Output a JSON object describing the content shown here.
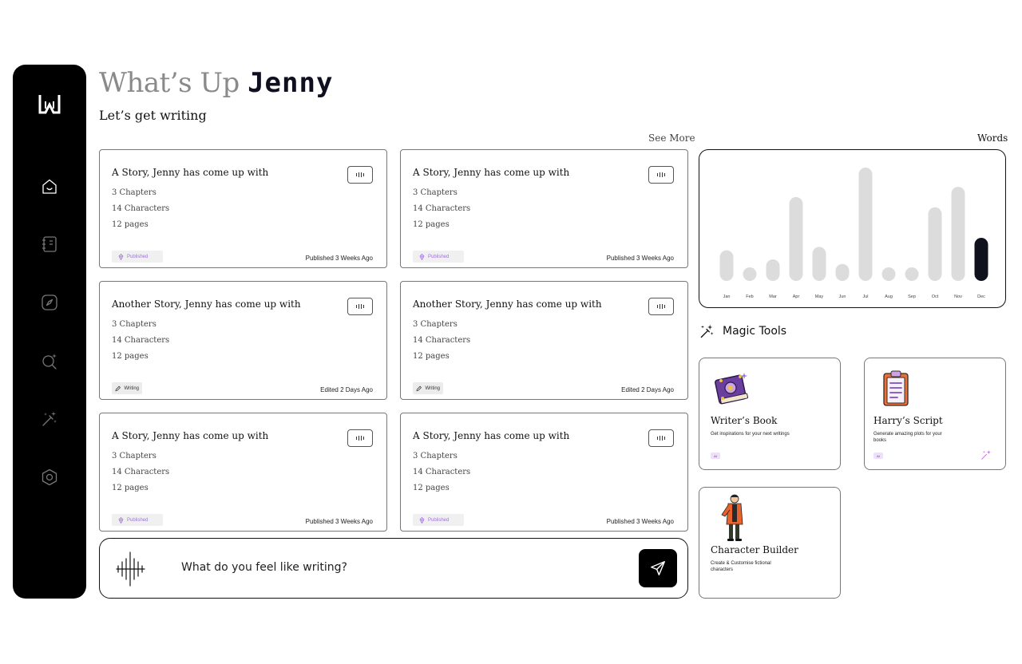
{
  "greeting": {
    "prefix": "What’s Up",
    "name": "Jenny",
    "subtitle": "Let’s get writing"
  },
  "see_more": "See More",
  "words_label": "Words",
  "nav": [
    "home-icon",
    "notebook-icon",
    "compass-icon",
    "search-sparkle-icon",
    "magic-wand-icon",
    "settings-hex-icon"
  ],
  "stories": [
    {
      "title": "A Story, Jenny has come up with",
      "chapters": "3 Chapters",
      "characters": "14 Characters",
      "pages": "12 pages",
      "badge": "Published",
      "status": "Published 3 Weeks Ago"
    },
    {
      "title": "A Story, Jenny has come up with",
      "chapters": "3 Chapters",
      "characters": "14 Characters",
      "pages": "12 pages",
      "badge": "Published",
      "status": "Published 3 Weeks Ago"
    },
    {
      "title": "Another Story, Jenny has come up with",
      "chapters": "3 Chapters",
      "characters": "14 Characters",
      "pages": "12 pages",
      "badge": "Writing",
      "status": "Edited 2 Days Ago"
    },
    {
      "title": "Another Story, Jenny has come up with",
      "chapters": "3 Chapters",
      "characters": "14 Characters",
      "pages": "12 pages",
      "badge": "Writing",
      "status": "Edited 2 Days Ago"
    },
    {
      "title": "A Story, Jenny has come up with",
      "chapters": "3 Chapters",
      "characters": "14 Characters",
      "pages": "12 pages",
      "badge": "Published",
      "status": "Published 3 Weeks Ago"
    },
    {
      "title": "A Story, Jenny has come up with",
      "chapters": "3 Chapters",
      "characters": "14 Characters",
      "pages": "12 pages",
      "badge": "Published",
      "status": "Published 3 Weeks Ago"
    }
  ],
  "prompt": {
    "placeholder": "What do you feel like writing?"
  },
  "chart_data": {
    "type": "bar",
    "categories": [
      "Jan",
      "Feb",
      "Mar",
      "Apr",
      "May",
      "Jun",
      "Jul",
      "Aug",
      "Sep",
      "Oct",
      "Nov",
      "Dec"
    ],
    "values": [
      27,
      11,
      19,
      74,
      30,
      15,
      100,
      11,
      11,
      65,
      83,
      38
    ],
    "highlight_index": 11,
    "highlight_color": "#0f111d",
    "bar_color": "#dcdcdc",
    "ylim": [
      0,
      100
    ],
    "grid": false,
    "legend": "none"
  },
  "magic_tools": {
    "title": "Magic Tools",
    "items": [
      {
        "title": "Writer’s Book",
        "desc": "Get inspirations for your next writings",
        "tag": "AI",
        "icon": "magic-book-icon"
      },
      {
        "title": "Harry’s Script",
        "desc": "Generate amazing plots for your books",
        "tag": "AI",
        "icon": "clipboard-script-icon"
      },
      {
        "title": "Character Builder",
        "desc": "Create & Customise fictional characters",
        "icon": "character-figure-icon"
      }
    ]
  }
}
